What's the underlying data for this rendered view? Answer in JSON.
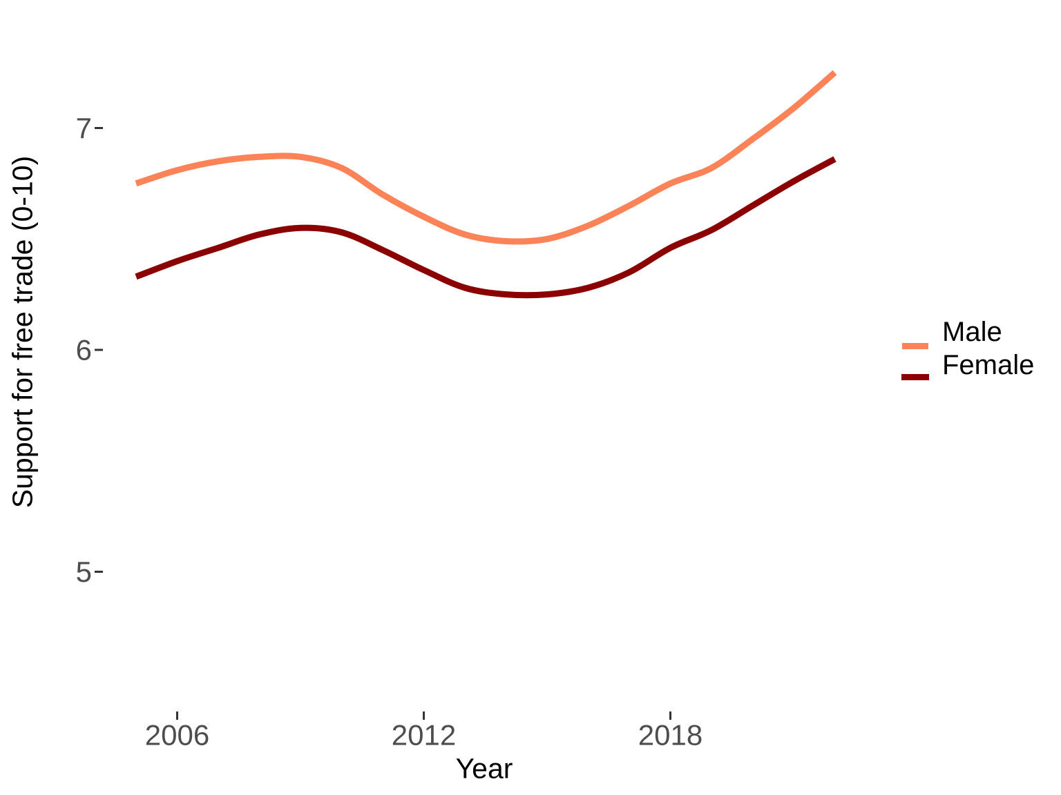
{
  "chart_data": {
    "type": "line",
    "title": "",
    "xlabel": "Year",
    "ylabel": "Support for free trade (0-10)",
    "x": [
      2005,
      2006,
      2007,
      2008,
      2009,
      2010,
      2011,
      2012,
      2013,
      2014,
      2015,
      2016,
      2017,
      2018,
      2019,
      2020,
      2021,
      2022
    ],
    "series": [
      {
        "name": "Male",
        "color": "#FC8258",
        "values": [
          6.75,
          6.81,
          6.85,
          6.87,
          6.87,
          6.82,
          6.7,
          6.6,
          6.52,
          6.49,
          6.5,
          6.56,
          6.65,
          6.75,
          6.82,
          6.95,
          7.09,
          7.25
        ]
      },
      {
        "name": "Female",
        "color": "#8B0000",
        "values": [
          6.33,
          6.4,
          6.46,
          6.52,
          6.55,
          6.53,
          6.45,
          6.36,
          6.28,
          6.25,
          6.25,
          6.28,
          6.35,
          6.46,
          6.54,
          6.65,
          6.76,
          6.86
        ]
      }
    ],
    "xticks": [
      2006,
      2012,
      2018
    ],
    "yticks": [
      5,
      6,
      7
    ],
    "xlim": [
      2004.2,
      2022.6
    ],
    "ylim": [
      4.4,
      7.55
    ],
    "grid": false,
    "axis_lines": false,
    "legend_position": "right",
    "background": "#FFFFFF",
    "tick_label_color": "#4D4D4D",
    "tick_mark_color": "#333333",
    "axis_title_color": "#000000"
  }
}
